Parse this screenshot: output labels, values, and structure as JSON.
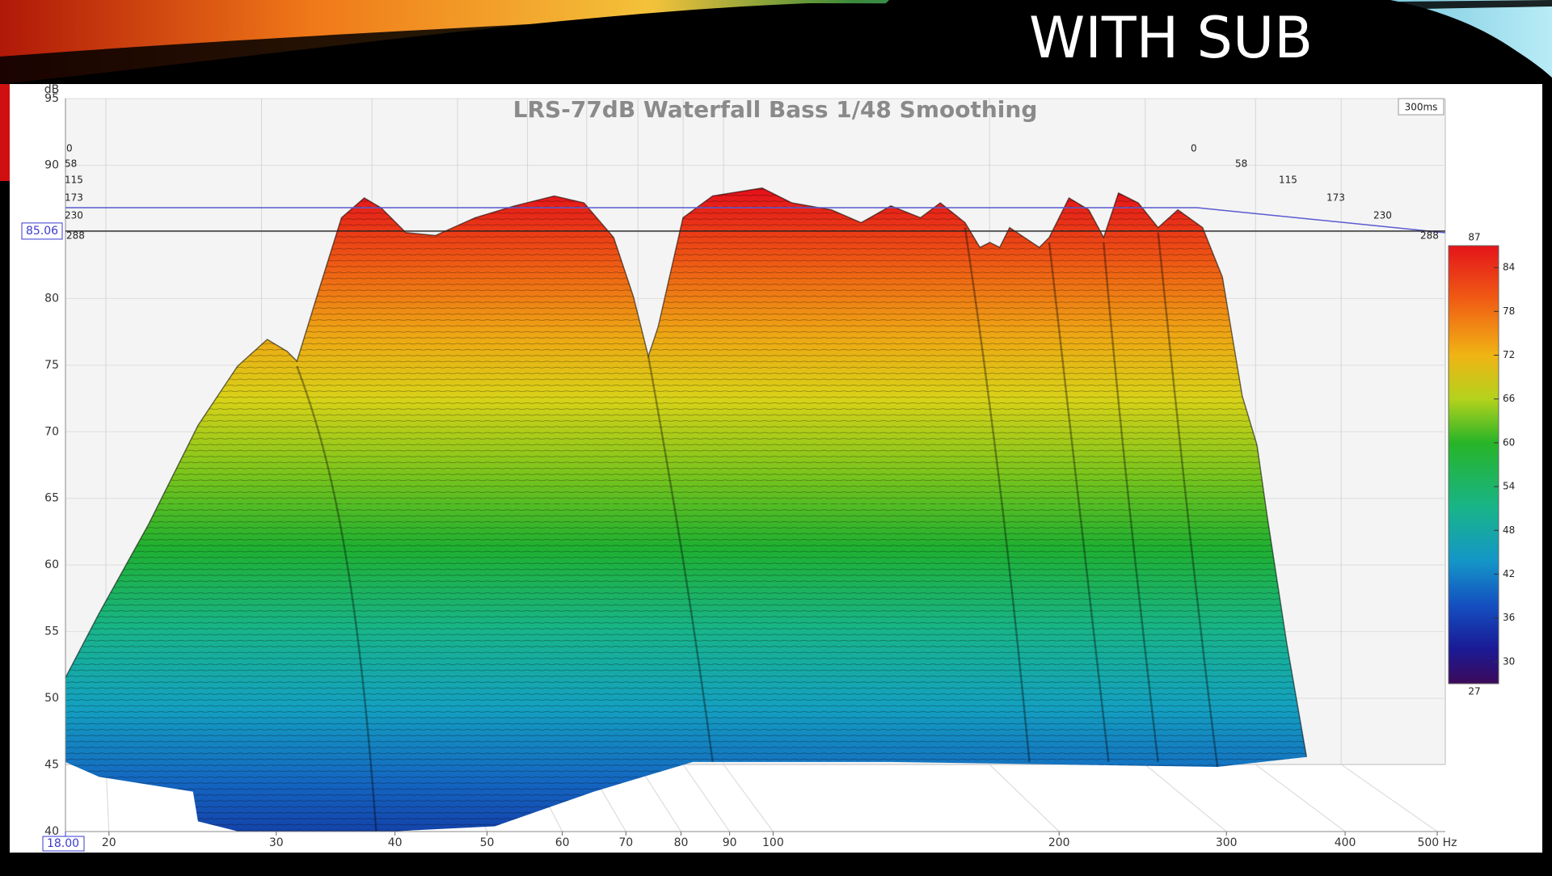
{
  "slide_title": "WITH SUB",
  "chart_data": {
    "type": "waterfall",
    "title": "LRS-77dB Waterfall Bass 1/48 Smoothing",
    "y_label": "dB",
    "ylim": [
      40,
      95
    ],
    "yticks": [
      40,
      45,
      50,
      55,
      60,
      65,
      70,
      75,
      80,
      85,
      90,
      95
    ],
    "x_scale": "log",
    "xlim": [
      18,
      500
    ],
    "xticks": [
      20,
      30,
      40,
      50,
      60,
      70,
      80,
      90,
      100,
      200,
      300,
      400,
      {
        "value": 500,
        "label": "500 Hz"
      }
    ],
    "grid": true,
    "cursor_x": {
      "value": 18,
      "label": "18.00"
    },
    "cursor_y": {
      "value": 85.06,
      "label": "85.06"
    },
    "time_range_label": "300ms",
    "time_ticks": [
      0,
      58,
      115,
      173,
      230,
      288
    ],
    "colorbar": {
      "lim": [
        27,
        87
      ],
      "ticks": [
        30,
        36,
        42,
        48,
        54,
        60,
        66,
        72,
        78,
        84
      ]
    }
  }
}
